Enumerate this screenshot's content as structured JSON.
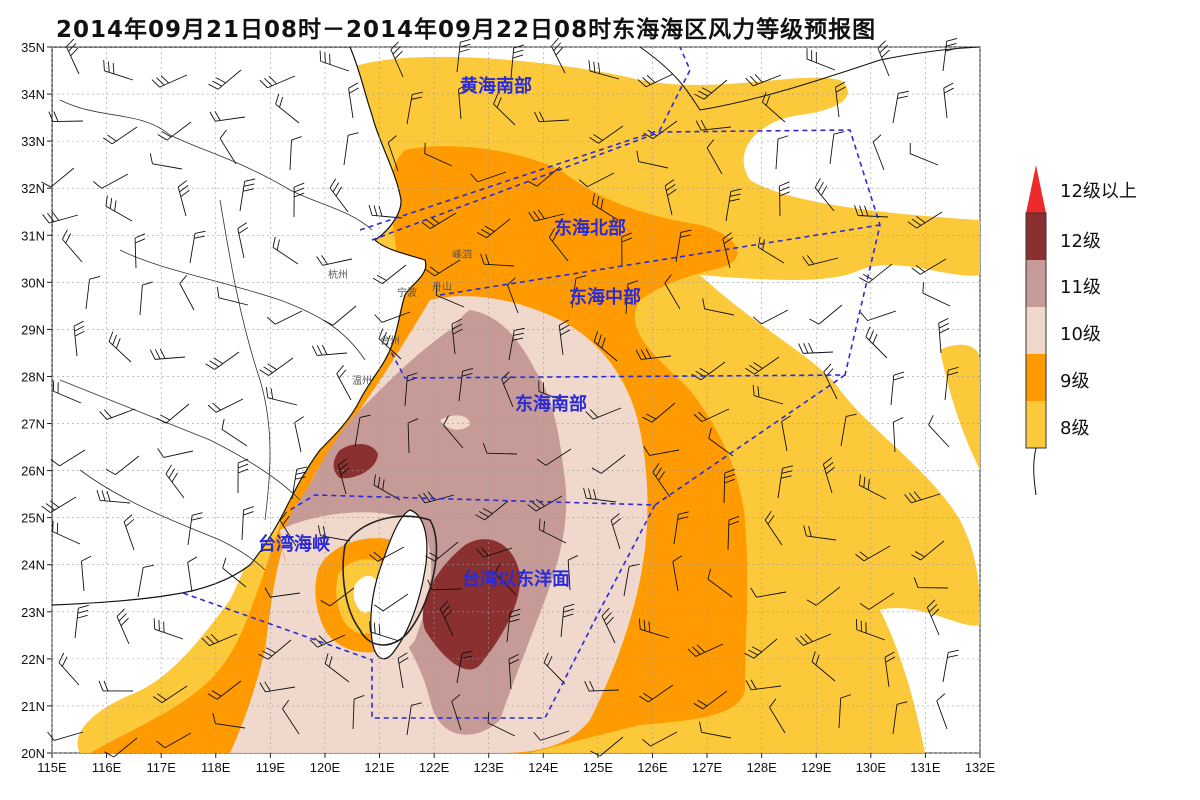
{
  "title": "2014年09月21日08时－2014年09月22日08时东海海区风力等级预报图",
  "map": {
    "lon_range": [
      115,
      132
    ],
    "lat_range": [
      20,
      35
    ],
    "lon_ticks": [
      "115E",
      "116E",
      "117E",
      "118E",
      "119E",
      "120E",
      "121E",
      "122E",
      "123E",
      "124E",
      "125E",
      "126E",
      "127E",
      "128E",
      "129E",
      "130E",
      "131E",
      "132E"
    ],
    "lat_ticks": [
      "20N",
      "21N",
      "22N",
      "23N",
      "24N",
      "25N",
      "26N",
      "27N",
      "28N",
      "29N",
      "30N",
      "31N",
      "32N",
      "33N",
      "34N",
      "35N"
    ],
    "regions": [
      {
        "id": "south-yellow-sea",
        "label": "黄海南部"
      },
      {
        "id": "north-east-china-sea",
        "label": "东海北部"
      },
      {
        "id": "central-east-china-sea",
        "label": "东海中部"
      },
      {
        "id": "south-east-china-sea",
        "label": "东海南部"
      },
      {
        "id": "taiwan-strait",
        "label": "台湾海峡"
      },
      {
        "id": "east-of-taiwan",
        "label": "台湾以东洋面"
      }
    ],
    "cities": [
      "杭州",
      "宁波",
      "舟山",
      "台州",
      "温州",
      "嵊泗"
    ]
  },
  "legend": {
    "items": [
      {
        "label": "12级以上",
        "color": "#ee2b2b",
        "shape": "triangle"
      },
      {
        "label": "12级",
        "color": "#8b3030"
      },
      {
        "label": "11级",
        "color": "#c69a96"
      },
      {
        "label": "10级",
        "color": "#f1d8cc"
      },
      {
        "label": "9级",
        "color": "#ff9a00"
      },
      {
        "label": "8级",
        "color": "#fcc93b"
      }
    ]
  },
  "colors": {
    "level8": "#fcc93b",
    "level9": "#ff9a00",
    "level10": "#f1d8cc",
    "level11": "#c69a96",
    "level12": "#8b3030",
    "region_border": "#2b2bd6",
    "grid": "#9a9a9a"
  }
}
